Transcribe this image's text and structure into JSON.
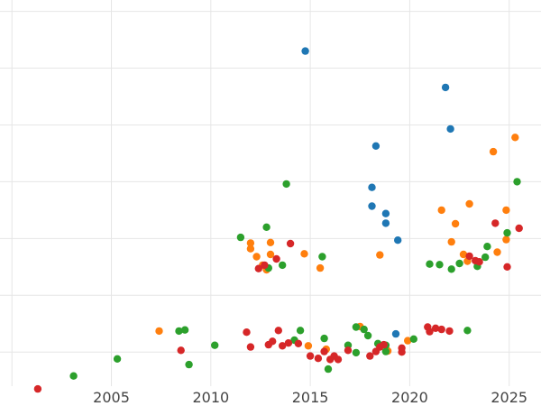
{
  "chart_data": {
    "type": "scatter",
    "title": "",
    "xlabel": "",
    "ylabel": "",
    "grid": true,
    "legend": "none",
    "xlim": [
      1999.4,
      2026.6
    ],
    "ylim": [
      -0.6,
      6.2
    ],
    "x_ticks": [
      {
        "value": 2005,
        "label": "2005"
      },
      {
        "value": 2010,
        "label": "2010"
      },
      {
        "value": 2015,
        "label": "2015"
      },
      {
        "value": 2020,
        "label": "2020"
      },
      {
        "value": 2025,
        "label": "2025"
      }
    ],
    "y_ticks": [
      0,
      1,
      2,
      3,
      4,
      5,
      6
    ],
    "series": [
      {
        "color": "#1f77b4",
        "points": [
          [
            14.75,
            5.3
          ],
          [
            21.8,
            4.66
          ],
          [
            22.05,
            3.93
          ],
          [
            18.3,
            3.63
          ],
          [
            18.1,
            2.9
          ],
          [
            18.1,
            2.57
          ],
          [
            18.8,
            2.44
          ],
          [
            18.8,
            2.27
          ],
          [
            19.4,
            1.97
          ],
          [
            19.3,
            0.32
          ]
        ]
      },
      {
        "color": "#ff7f0e",
        "points": [
          [
            7.4,
            0.37
          ],
          [
            12.0,
            1.92
          ],
          [
            12.0,
            1.82
          ],
          [
            12.3,
            1.68
          ],
          [
            12.6,
            1.53
          ],
          [
            12.8,
            1.45
          ],
          [
            13.0,
            1.93
          ],
          [
            13.0,
            1.72
          ],
          [
            14.7,
            1.73
          ],
          [
            14.9,
            0.11
          ],
          [
            15.5,
            1.48
          ],
          [
            15.8,
            0.05
          ],
          [
            17.5,
            0.45
          ],
          [
            18.5,
            1.71
          ],
          [
            18.9,
            0.02
          ],
          [
            19.9,
            0.2
          ],
          [
            21.6,
            2.5
          ],
          [
            22.1,
            1.94
          ],
          [
            22.3,
            2.26
          ],
          [
            22.7,
            1.72
          ],
          [
            22.9,
            1.6
          ],
          [
            23.0,
            2.61
          ],
          [
            24.2,
            3.53
          ],
          [
            24.4,
            1.76
          ],
          [
            24.85,
            1.98
          ],
          [
            24.85,
            2.5
          ],
          [
            25.3,
            3.78
          ]
        ]
      },
      {
        "color": "#2ca02c",
        "points": [
          [
            3.1,
            -0.42
          ],
          [
            5.3,
            -0.12
          ],
          [
            8.4,
            0.37
          ],
          [
            8.7,
            0.39
          ],
          [
            8.9,
            -0.22
          ],
          [
            10.2,
            0.12
          ],
          [
            11.5,
            2.02
          ],
          [
            12.8,
            2.2
          ],
          [
            12.9,
            1.48
          ],
          [
            13.6,
            1.53
          ],
          [
            13.8,
            2.96
          ],
          [
            14.2,
            0.21
          ],
          [
            14.5,
            0.38
          ],
          [
            15.6,
            1.68
          ],
          [
            15.7,
            0.24
          ],
          [
            15.9,
            -0.3
          ],
          [
            16.9,
            0.12
          ],
          [
            17.3,
            -0.01
          ],
          [
            17.3,
            0.44
          ],
          [
            17.7,
            0.4
          ],
          [
            17.9,
            0.29
          ],
          [
            18.4,
            0.15
          ],
          [
            18.8,
            0.12
          ],
          [
            18.8,
            0.01
          ],
          [
            20.2,
            0.23
          ],
          [
            21.0,
            1.55
          ],
          [
            21.5,
            1.54
          ],
          [
            22.1,
            1.46
          ],
          [
            22.5,
            1.56
          ],
          [
            22.9,
            0.38
          ],
          [
            23.4,
            1.51
          ],
          [
            23.8,
            1.67
          ],
          [
            23.9,
            1.86
          ],
          [
            24.9,
            2.1
          ],
          [
            25.4,
            3.0
          ]
        ]
      },
      {
        "color": "#d62728",
        "points": [
          [
            1.3,
            -0.65
          ],
          [
            8.5,
            0.03
          ],
          [
            11.8,
            0.35
          ],
          [
            12.0,
            0.09
          ],
          [
            12.4,
            1.47
          ],
          [
            12.7,
            1.53
          ],
          [
            12.9,
            0.13
          ],
          [
            13.1,
            0.19
          ],
          [
            13.3,
            1.64
          ],
          [
            13.4,
            0.38
          ],
          [
            13.6,
            0.11
          ],
          [
            13.9,
            0.16
          ],
          [
            14.0,
            1.91
          ],
          [
            14.4,
            0.15
          ],
          [
            15.0,
            -0.07
          ],
          [
            15.4,
            -0.11
          ],
          [
            15.7,
            0.01
          ],
          [
            16.0,
            -0.13
          ],
          [
            16.2,
            -0.07
          ],
          [
            16.4,
            -0.13
          ],
          [
            16.9,
            0.03
          ],
          [
            18.0,
            -0.07
          ],
          [
            18.3,
            0.01
          ],
          [
            18.5,
            0.09
          ],
          [
            18.7,
            0.13
          ],
          [
            19.6,
            0.0
          ],
          [
            19.6,
            0.07
          ],
          [
            20.9,
            0.44
          ],
          [
            21.0,
            0.36
          ],
          [
            21.3,
            0.42
          ],
          [
            21.6,
            0.4
          ],
          [
            22.0,
            0.37
          ],
          [
            23.0,
            1.69
          ],
          [
            23.3,
            1.61
          ],
          [
            23.5,
            1.59
          ],
          [
            24.3,
            2.27
          ],
          [
            24.9,
            1.5
          ],
          [
            25.5,
            2.18
          ]
        ]
      }
    ]
  }
}
